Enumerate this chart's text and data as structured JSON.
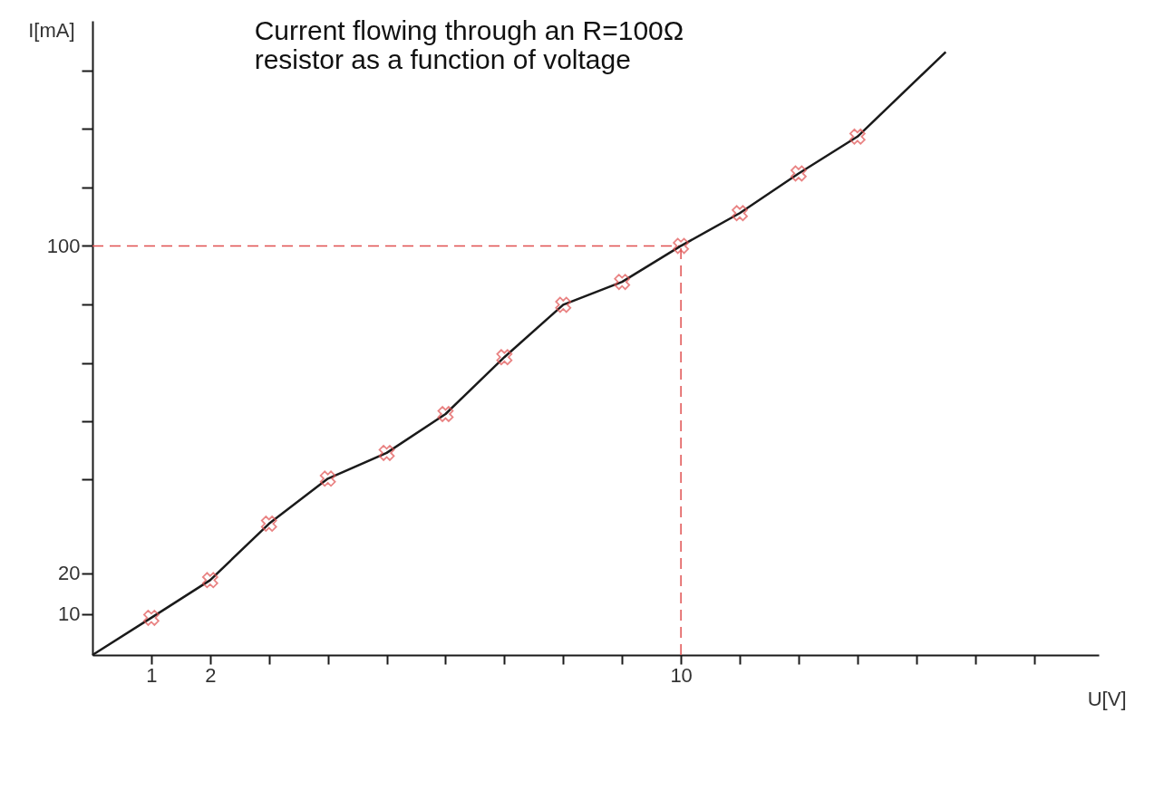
{
  "chart_data": {
    "type": "line",
    "title": [
      "Current flowing through an R=100Ω",
      "resistor as a function of voltage"
    ],
    "xlabel": "U[V]",
    "ylabel": "I[mA]",
    "xlim": [
      0,
      17.1
    ],
    "ylim": [
      0,
      155
    ],
    "xticks": [
      1,
      2,
      {
        "value": 3,
        "label": null
      },
      {
        "value": 4,
        "label": null
      },
      {
        "value": 5,
        "label": null
      },
      {
        "value": 6,
        "label": null
      },
      {
        "value": 7,
        "label": null
      },
      {
        "value": 8,
        "label": null
      },
      {
        "value": 9,
        "label": null
      },
      10,
      {
        "value": 11,
        "label": null
      },
      {
        "value": 12,
        "label": null
      },
      {
        "value": 13,
        "label": null
      },
      {
        "value": 14,
        "label": null
      },
      {
        "value": 15,
        "label": null
      },
      {
        "value": 16,
        "label": null
      }
    ],
    "yticks": [
      10,
      20,
      {
        "value": 42.9,
        "label": null
      },
      {
        "value": 57.1,
        "label": null
      },
      {
        "value": 71.4,
        "label": null
      },
      {
        "value": 85.7,
        "label": null
      },
      100,
      {
        "value": 114.3,
        "label": null
      },
      {
        "value": 128.6,
        "label": null
      },
      {
        "value": 142.9,
        "label": null
      }
    ],
    "grid": false,
    "series": [
      {
        "color": "#1a1a1a",
        "marker": "none",
        "line_style": "solid",
        "x": [
          0,
          1,
          2,
          3,
          4,
          5,
          6,
          7,
          8,
          9,
          10,
          11,
          12,
          13,
          14.5
        ],
        "values": [
          0,
          9.1,
          18.3,
          32.1,
          43.1,
          49.4,
          58.9,
          72.8,
          85.6,
          91.2,
          100,
          108,
          117.7,
          126.7,
          147.4
        ]
      },
      {
        "type": "scatter",
        "color": "#e05050",
        "marker": "cross",
        "x": [
          1,
          2,
          3,
          4,
          5,
          6,
          7,
          8,
          9,
          10,
          11,
          12,
          13
        ],
        "values": [
          9.1,
          18.3,
          32.1,
          43.1,
          49.4,
          58.9,
          72.8,
          85.6,
          91.2,
          100,
          108,
          117.7,
          126.7
        ]
      }
    ],
    "ref_lines": [
      {
        "axis": "y",
        "value": 100,
        "color": "#e05050",
        "line_style": "dashed"
      },
      {
        "axis": "x",
        "value": 10,
        "color": "#e05050",
        "line_style": "dashed"
      }
    ]
  }
}
